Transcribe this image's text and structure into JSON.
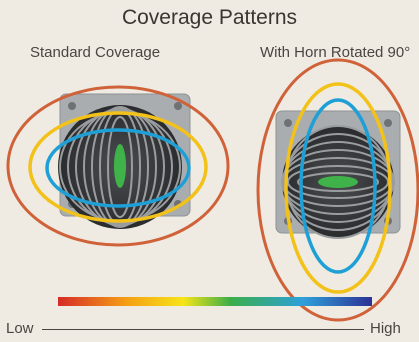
{
  "title": "Coverage Patterns",
  "panels": [
    {
      "label": "Standard Coverage"
    },
    {
      "label": "With Horn Rotated 90°"
    }
  ],
  "scale": {
    "low": "Low",
    "high": "High"
  },
  "colors": {
    "background": "#efebe2",
    "speaker_frame": "#a9adb0",
    "speaker_cone": "#3b3c3e",
    "contour_rings": "#9a9d9f",
    "red_contour": "#d0623a",
    "yellow_contour": "#f2c21a",
    "blue_contour": "#1ea0d6",
    "green_center": "#3fb34a",
    "gradient": [
      "#d62a27",
      "#f5a014",
      "#f6e418",
      "#3aae49",
      "#2ea0da",
      "#2d3194"
    ]
  }
}
